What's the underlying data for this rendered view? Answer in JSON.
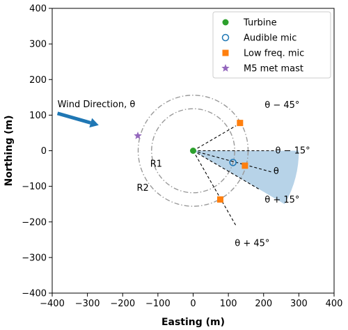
{
  "chart_data": {
    "type": "scatter",
    "xlabel": "Easting (m)",
    "ylabel": "Northing (m)",
    "xlim": [
      -400,
      400
    ],
    "ylim": [
      -400,
      400
    ],
    "x_ticks": [
      -400,
      -300,
      -200,
      -100,
      0,
      100,
      200,
      300,
      400
    ],
    "y_ticks": [
      -400,
      -300,
      -200,
      -100,
      0,
      100,
      200,
      300,
      400
    ],
    "x_tick_labels": [
      "−400",
      "−300",
      "−200",
      "−100",
      "0",
      "100",
      "200",
      "300",
      "400"
    ],
    "y_tick_labels": [
      "−400",
      "−300",
      "−200",
      "−100",
      "0",
      "100",
      "200",
      "300",
      "400"
    ],
    "legend_position": "top-right",
    "series": [
      {
        "name": "Turbine",
        "marker": "circle",
        "color": "#2ca02c",
        "points": [
          [
            0,
            0
          ]
        ]
      },
      {
        "name": "Audible mic",
        "marker": "open-circle",
        "color": "#1f77b4",
        "points": [
          [
            113,
            -33
          ]
        ]
      },
      {
        "name": "Low freq. mic",
        "marker": "square",
        "color": "#ff7f0e",
        "points": [
          [
            133,
            78
          ],
          [
            147,
            -42
          ],
          [
            77,
            -137
          ]
        ]
      },
      {
        "name": "M5 met mast",
        "marker": "star",
        "color": "#9467bd",
        "points": [
          [
            -157,
            42
          ]
        ]
      }
    ],
    "rings": [
      {
        "label": "R1",
        "radius": 118
      },
      {
        "label": "R2",
        "radius": 156
      }
    ],
    "ray_labels": [
      "θ − 45°",
      "θ − 15°",
      "θ",
      "θ + 15°",
      "θ + 45°"
    ],
    "wind_label": "Wind Direction, θ",
    "wind_direction_deg": -15,
    "sector_radius": 300,
    "colors": {
      "sector_fill": "#b7d3e8",
      "ring_stroke": "#999999",
      "ray_stroke": "#000000",
      "wind_arrow": "#1f77b4"
    }
  }
}
